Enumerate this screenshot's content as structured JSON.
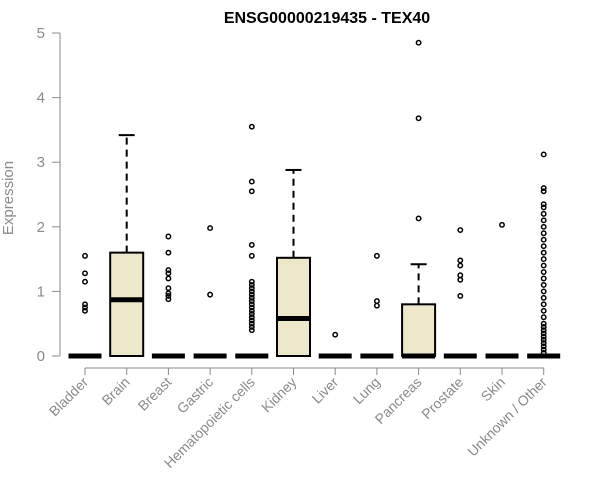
{
  "chart_data": {
    "type": "boxplot",
    "title": "ENSG00000219435 - TEX40",
    "xlabel": "",
    "ylabel": "Expression",
    "ylim": [
      0,
      5
    ],
    "yticks": [
      "0",
      "1",
      "2",
      "3",
      "4",
      "5"
    ],
    "categories": [
      "Bladder",
      "Brain",
      "Breast",
      "Gastric",
      "Hematopoietic cells",
      "Kidney",
      "Liver",
      "Lung",
      "Pancreas",
      "Prostate",
      "Skin",
      "Unknown / Other"
    ],
    "colors": {
      "box_fill": "#ede7cc",
      "stroke": "#000000",
      "axis_text": "#8a8a8a"
    },
    "boxes": [
      {
        "name": "Bladder",
        "q1": 0,
        "median": 0,
        "q3": 0,
        "whisker_low": 0,
        "whisker_high": 0,
        "outliers": [
          0.7,
          0.75,
          0.8,
          1.15,
          1.28,
          1.55
        ]
      },
      {
        "name": "Brain",
        "q1": 0,
        "median": 0.87,
        "q3": 1.6,
        "whisker_low": 0,
        "whisker_high": 3.42,
        "outliers": []
      },
      {
        "name": "Breast",
        "q1": 0,
        "median": 0,
        "q3": 0,
        "whisker_low": 0,
        "whisker_high": 0,
        "outliers": [
          0.88,
          0.93,
          0.97,
          1.05,
          1.2,
          1.28,
          1.33,
          1.6,
          1.85
        ]
      },
      {
        "name": "Gastric",
        "q1": 0,
        "median": 0,
        "q3": 0,
        "whisker_low": 0,
        "whisker_high": 0,
        "outliers": [
          0.95,
          1.98
        ]
      },
      {
        "name": "Hematopoietic cells",
        "q1": 0,
        "median": 0,
        "q3": 0,
        "whisker_low": 0,
        "whisker_high": 0,
        "outliers": [
          0.4,
          0.45,
          0.5,
          0.55,
          0.6,
          0.65,
          0.7,
          0.75,
          0.8,
          0.85,
          0.9,
          0.95,
          1.0,
          1.05,
          1.1,
          1.15,
          1.55,
          1.72,
          2.55,
          2.7,
          3.55
        ]
      },
      {
        "name": "Kidney",
        "q1": 0,
        "median": 0.58,
        "q3": 1.52,
        "whisker_low": 0,
        "whisker_high": 2.88,
        "outliers": []
      },
      {
        "name": "Liver",
        "q1": 0,
        "median": 0,
        "q3": 0,
        "whisker_low": 0,
        "whisker_high": 0,
        "outliers": [
          0.33
        ]
      },
      {
        "name": "Lung",
        "q1": 0,
        "median": 0,
        "q3": 0,
        "whisker_low": 0,
        "whisker_high": 0,
        "outliers": [
          0.78,
          0.85,
          1.55
        ]
      },
      {
        "name": "Pancreas",
        "q1": 0,
        "median": 0,
        "q3": 0.8,
        "whisker_low": 0,
        "whisker_high": 1.42,
        "outliers": [
          2.13,
          3.68,
          4.85
        ]
      },
      {
        "name": "Prostate",
        "q1": 0,
        "median": 0,
        "q3": 0,
        "whisker_low": 0,
        "whisker_high": 0,
        "outliers": [
          0.93,
          1.18,
          1.25,
          1.4,
          1.48,
          1.95
        ]
      },
      {
        "name": "Skin",
        "q1": 0,
        "median": 0,
        "q3": 0,
        "whisker_low": 0,
        "whisker_high": 0,
        "outliers": [
          2.03
        ]
      },
      {
        "name": "Unknown / Other",
        "q1": 0,
        "median": 0,
        "q3": 0,
        "whisker_low": 0,
        "whisker_high": 0,
        "outliers": [
          0.05,
          0.1,
          0.15,
          0.2,
          0.25,
          0.3,
          0.35,
          0.4,
          0.45,
          0.5,
          0.6,
          0.7,
          0.8,
          0.9,
          1.0,
          1.1,
          1.2,
          1.3,
          1.4,
          1.5,
          1.6,
          1.7,
          1.8,
          1.9,
          2.0,
          2.1,
          2.2,
          2.3,
          2.35,
          2.55,
          2.6,
          3.12
        ]
      }
    ]
  }
}
